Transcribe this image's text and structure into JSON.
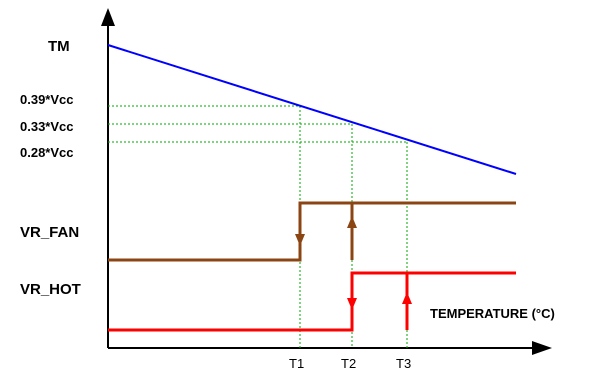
{
  "diagram": {
    "y_signal_label": "TM",
    "fan_label": "VR_FAN",
    "hot_label": "VR_HOT",
    "x_axis_label": "TEMPERATURE (°C)",
    "voltage_levels": [
      "0.39*Vcc",
      "0.33*Vcc",
      "0.28*Vcc"
    ],
    "thresholds": [
      "T1",
      "T2",
      "T3"
    ],
    "colors": {
      "tm_line": "#0000ff",
      "fan_line": "#8b4513",
      "hot_line": "#ff0000",
      "guide": "#00aa00",
      "axes": "#000000"
    }
  }
}
